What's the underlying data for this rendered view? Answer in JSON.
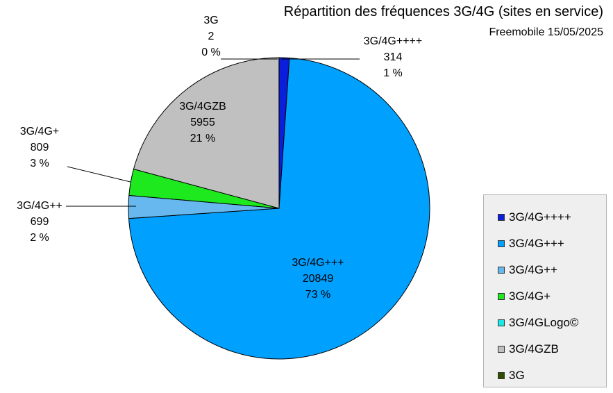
{
  "chart_data": {
    "type": "pie",
    "title": "Répartition des fréquences 3G/4G (sites en service)",
    "subtitle": "Freemobile 15/05/2025",
    "slices": [
      {
        "label": "3G/4G++++",
        "value": 314,
        "percent": "1 %",
        "color": "#0a1edb"
      },
      {
        "label": "3G/4G+++",
        "value": 20849,
        "percent": "73 %",
        "color": "#00a0ff"
      },
      {
        "label": "3G/4G++",
        "value": 699,
        "percent": "2 %",
        "color": "#66b8ee"
      },
      {
        "label": "3G/4G+",
        "value": 809,
        "percent": "3 %",
        "color": "#1ee81e"
      },
      {
        "label": "3G/4GZB",
        "value": 5955,
        "percent": "21 %",
        "color": "#c0c0c0"
      },
      {
        "label": "3G",
        "value": 2,
        "percent": "0 %",
        "color": "#2f4f00"
      }
    ],
    "legend": [
      {
        "label": "3G/4G++++",
        "color": "#0a1edb"
      },
      {
        "label": "3G/4G+++",
        "color": "#00a0ff"
      },
      {
        "label": "3G/4G++",
        "color": "#66b8ee"
      },
      {
        "label": "3G/4G+",
        "color": "#1ee81e"
      },
      {
        "label": "3G/4GLogo©",
        "color": "#1ce8e8"
      },
      {
        "label": "3G/4GZB",
        "color": "#c0c0c0"
      },
      {
        "label": "3G",
        "color": "#2f4f00"
      }
    ],
    "legend_position": "right"
  }
}
